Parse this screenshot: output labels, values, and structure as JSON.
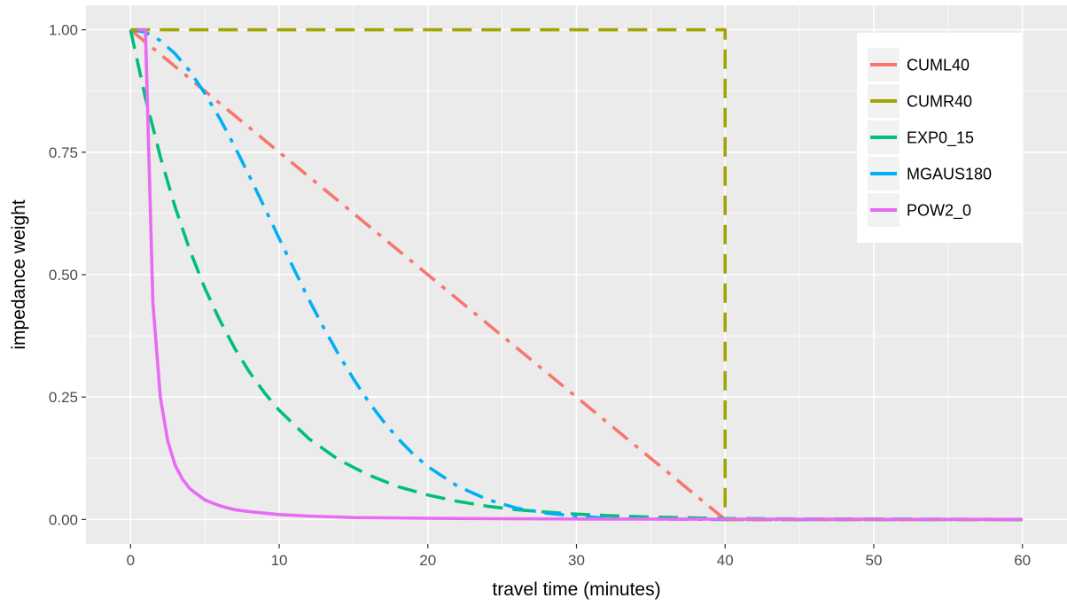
{
  "chart_data": {
    "type": "line",
    "title": "",
    "xlabel": "travel time (minutes)",
    "ylabel": "impedance weight",
    "xlim": [
      -3,
      63
    ],
    "ylim": [
      -0.05,
      1.05
    ],
    "xticks": [
      0,
      10,
      20,
      30,
      40,
      50,
      60
    ],
    "xtick_labels": [
      "0",
      "10",
      "20",
      "30",
      "40",
      "50",
      "60"
    ],
    "yticks": [
      0,
      0.25,
      0.5,
      0.75,
      1.0
    ],
    "ytick_labels": [
      "0.00",
      "0.25",
      "0.50",
      "0.75",
      "1.00"
    ],
    "grid": true,
    "legend_position": "top-right",
    "colors": {
      "panel_bg": "#ebebeb",
      "grid": "#ffffff",
      "tick_text": "#4d4d4d"
    },
    "series": [
      {
        "name": "CUML40",
        "color": "#f8766d",
        "linestyle": "dashdot",
        "x": [
          0,
          40,
          40,
          60
        ],
        "y": [
          1.0,
          0.0,
          0.0,
          0.0
        ]
      },
      {
        "name": "CUMR40",
        "color": "#a3a500",
        "linestyle": "dashed",
        "x": [
          0,
          40,
          40,
          60
        ],
        "y": [
          1.0,
          1.0,
          0.0,
          0.0
        ]
      },
      {
        "name": "EXP0_15",
        "color": "#00bf7d",
        "linestyle": "dashed",
        "x": [
          0,
          1,
          2,
          3,
          4,
          5,
          6,
          7,
          8,
          9,
          10,
          12,
          14,
          16,
          18,
          20,
          22,
          24,
          26,
          28,
          30,
          32,
          35,
          40,
          45,
          50,
          60
        ],
        "y": [
          1.0,
          0.861,
          0.741,
          0.638,
          0.549,
          0.472,
          0.407,
          0.35,
          0.301,
          0.259,
          0.223,
          0.165,
          0.122,
          0.091,
          0.067,
          0.05,
          0.037,
          0.027,
          0.02,
          0.015,
          0.011,
          0.008,
          0.005,
          0.002,
          0.001,
          0.001,
          0.0
        ]
      },
      {
        "name": "MGAUS180",
        "color": "#00b0f6",
        "linestyle": "dashdot",
        "x": [
          0,
          1,
          2,
          3,
          4,
          5,
          6,
          7,
          8,
          9,
          10,
          11,
          12,
          13,
          14,
          15,
          16,
          17,
          18,
          19,
          20,
          22,
          24,
          26,
          28,
          30,
          32,
          35,
          40,
          50,
          60
        ],
        "y": [
          1.0,
          0.995,
          0.978,
          0.951,
          0.915,
          0.87,
          0.819,
          0.762,
          0.701,
          0.638,
          0.574,
          0.511,
          0.449,
          0.391,
          0.337,
          0.287,
          0.241,
          0.201,
          0.165,
          0.134,
          0.108,
          0.068,
          0.041,
          0.023,
          0.013,
          0.007,
          0.003,
          0.001,
          0.0,
          0.0,
          0.0
        ]
      },
      {
        "name": "POW2_0",
        "color": "#e76bf3",
        "linestyle": "solid",
        "x": [
          0.5,
          1,
          1.5,
          2,
          2.5,
          3,
          3.5,
          4,
          5,
          6,
          7,
          8,
          10,
          12,
          15,
          20,
          25,
          30,
          40,
          50,
          60
        ],
        "y": [
          1.0,
          1.0,
          0.444,
          0.25,
          0.16,
          0.111,
          0.082,
          0.0625,
          0.04,
          0.028,
          0.02,
          0.016,
          0.01,
          0.007,
          0.004,
          0.0025,
          0.0016,
          0.0011,
          0.0006,
          0.0004,
          0.0003
        ]
      }
    ]
  }
}
